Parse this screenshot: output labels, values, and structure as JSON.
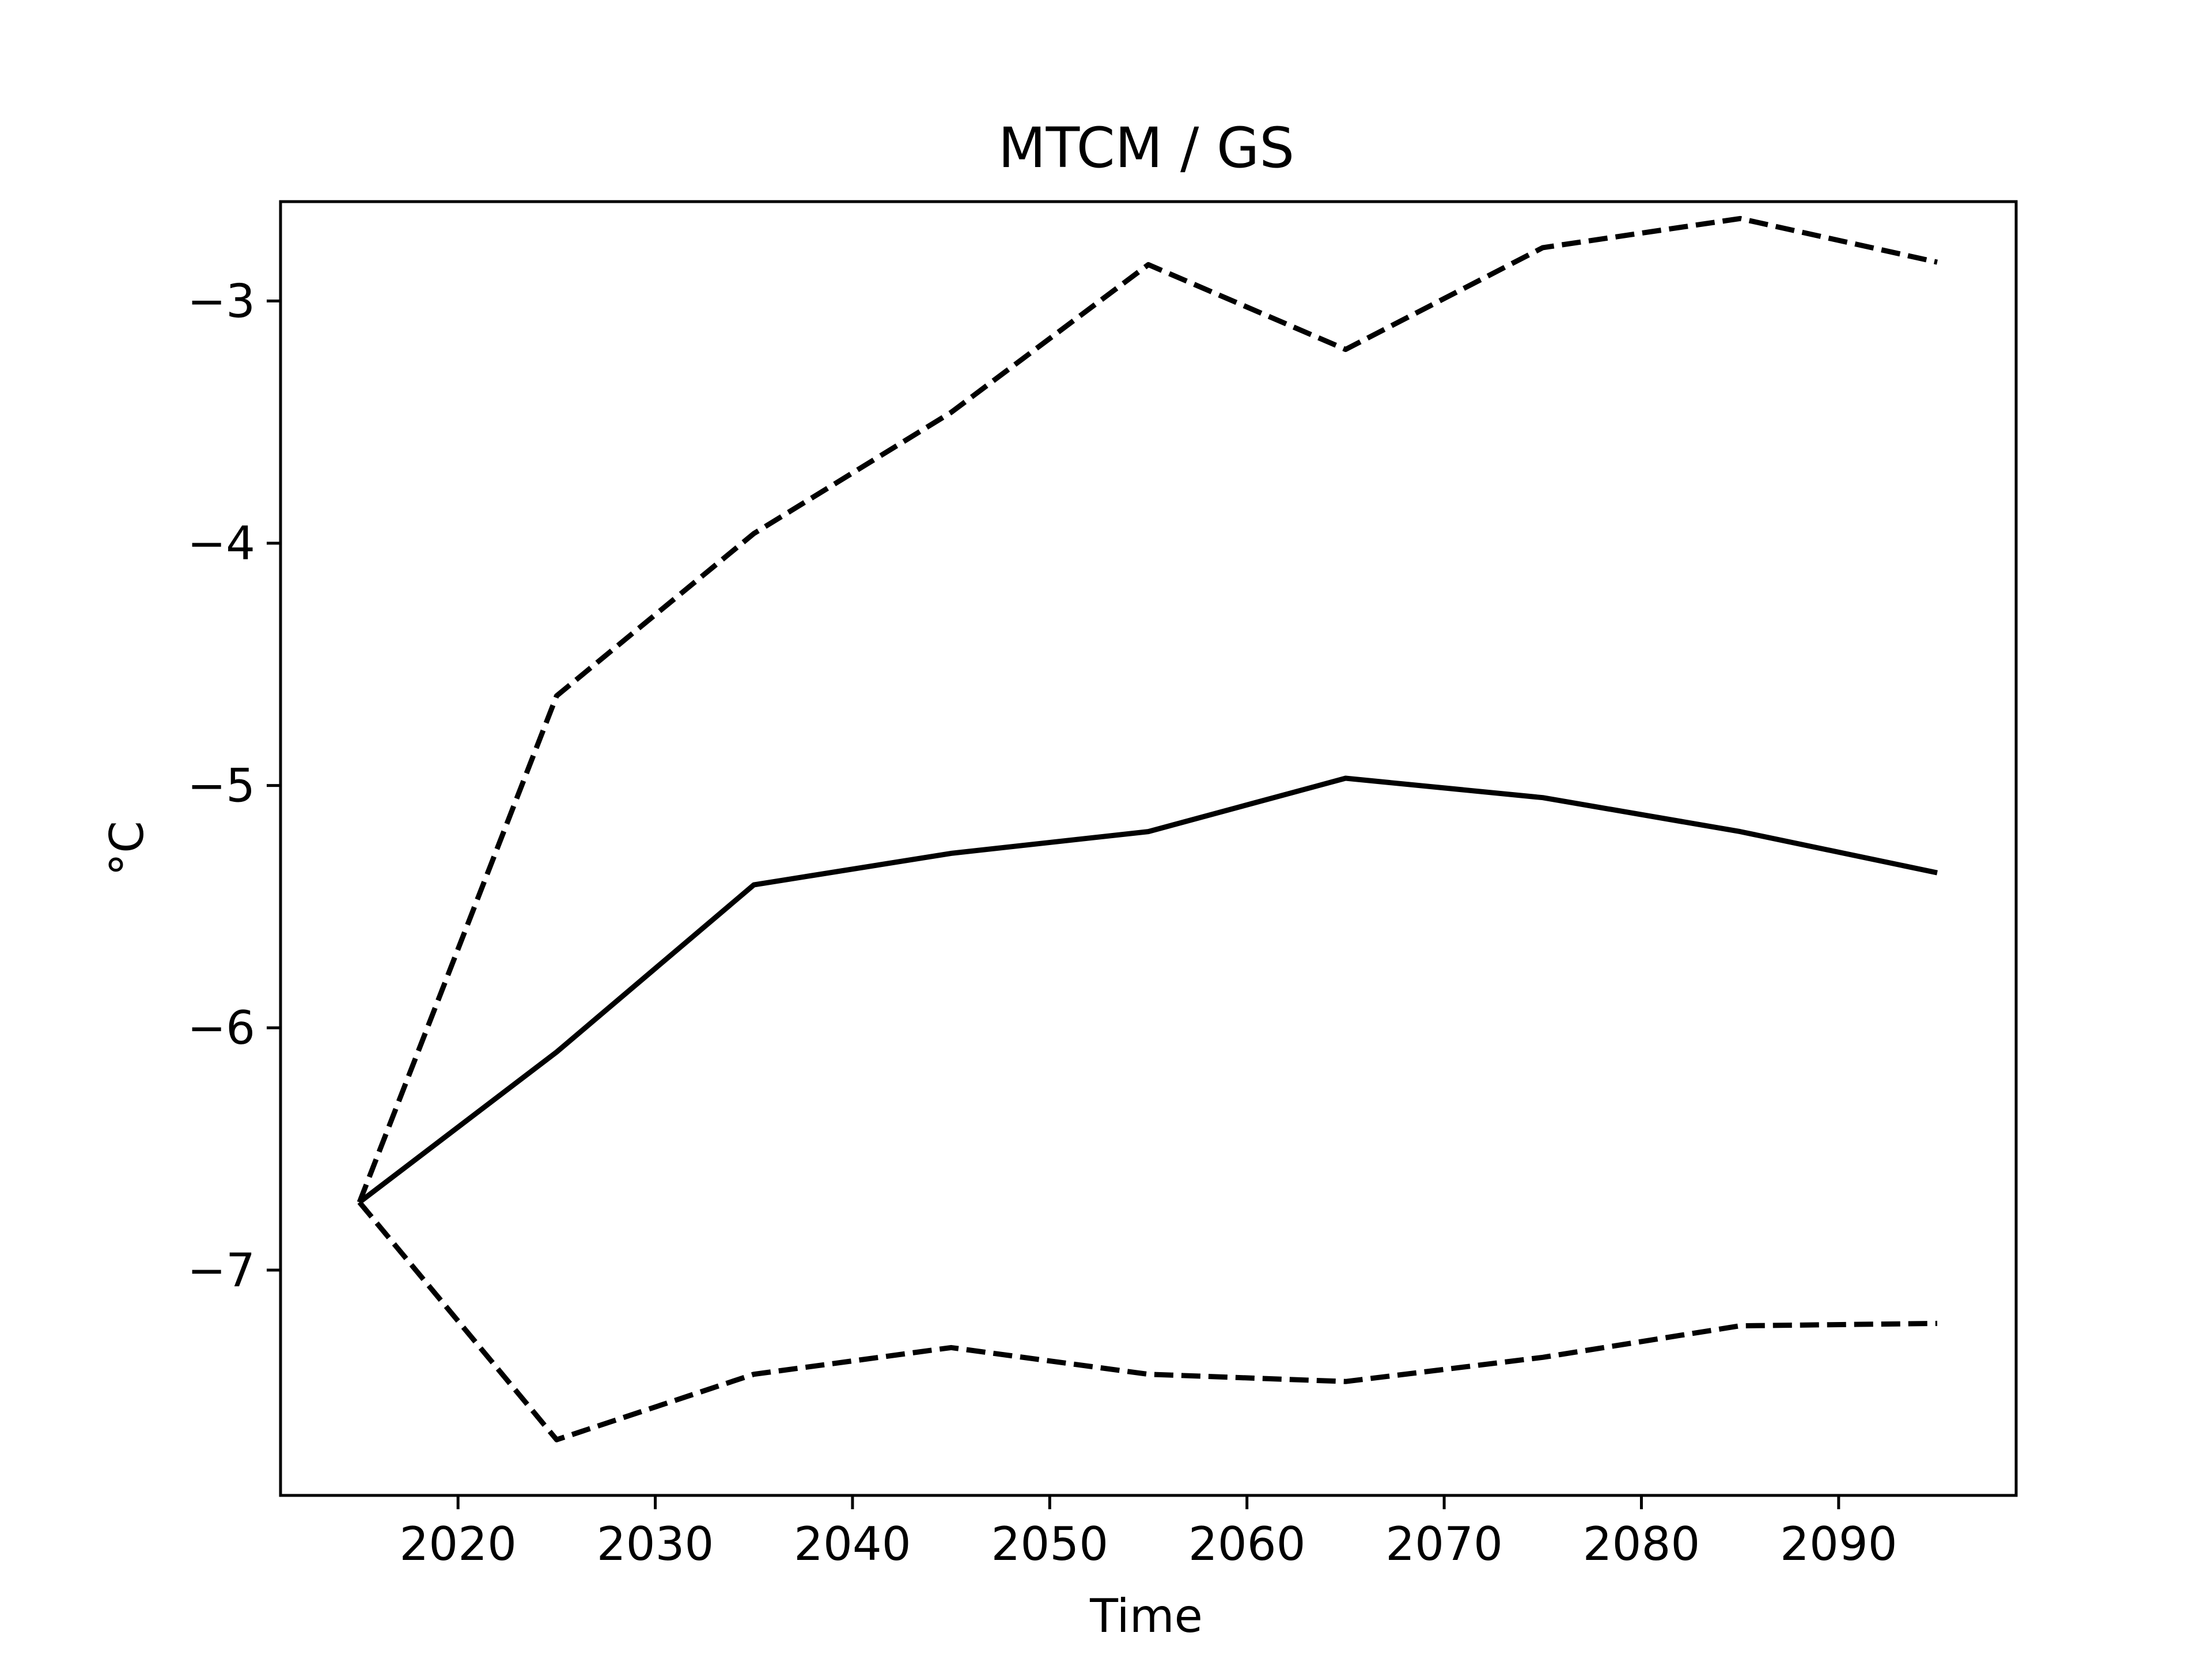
{
  "chart_data": {
    "type": "line",
    "title": "MTCM / GS",
    "xlabel": "Time",
    "ylabel": "°C",
    "xlim": [
      2011,
      2099
    ],
    "ylim": [
      -7.93,
      -2.59
    ],
    "xticks": [
      2020,
      2030,
      2040,
      2050,
      2060,
      2070,
      2080,
      2090
    ],
    "xtick_labels": [
      "2020",
      "2030",
      "2040",
      "2050",
      "2060",
      "2070",
      "2080",
      "2090"
    ],
    "yticks": [
      -3,
      -4,
      -5,
      -6,
      -7
    ],
    "ytick_labels": [
      "−3",
      "−4",
      "−5",
      "−6",
      "−7"
    ],
    "grid": false,
    "x": [
      2015,
      2025,
      2035,
      2045,
      2055,
      2065,
      2075,
      2085,
      2095
    ],
    "series": [
      {
        "line_style": "solid",
        "color": "#000000",
        "values": [
          -6.72,
          -6.1,
          -5.41,
          -5.28,
          -5.19,
          -4.97,
          -5.05,
          -5.19,
          -5.36
        ]
      },
      {
        "line_style": "dashed",
        "color": "#000000",
        "values": [
          -6.72,
          -4.63,
          -3.96,
          -3.46,
          -2.85,
          -3.2,
          -2.78,
          -2.66,
          -2.84
        ]
      },
      {
        "line_style": "dashed",
        "color": "#000000",
        "values": [
          -6.72,
          -7.7,
          -7.43,
          -7.32,
          -7.43,
          -7.46,
          -7.36,
          -7.23,
          -7.22
        ]
      }
    ]
  }
}
